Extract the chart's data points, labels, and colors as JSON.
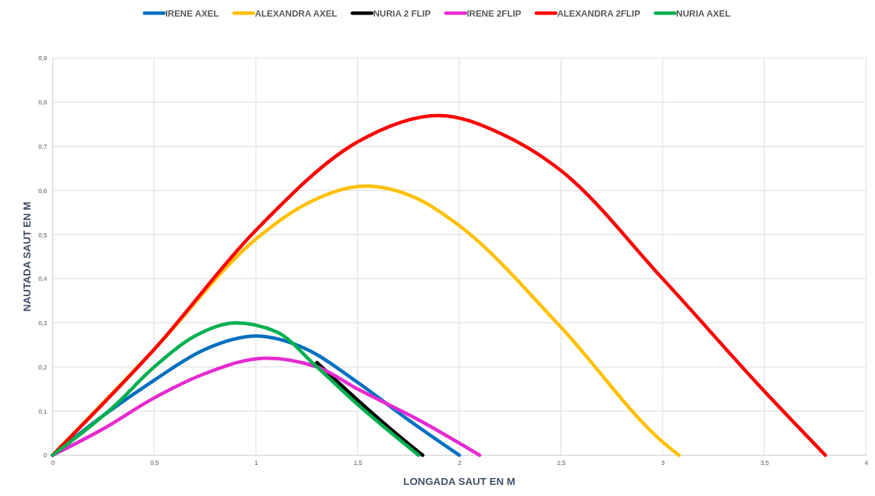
{
  "chart_data": {
    "type": "line",
    "xlabel": "LONGADA SAUT EN M",
    "ylabel": "NAUTADA  SAUT EN M",
    "xlim": [
      0,
      4
    ],
    "ylim": [
      0,
      0.9
    ],
    "xticks": [
      0,
      {
        "value": 0.5,
        "label": "0,5"
      },
      1,
      {
        "value": 1.5,
        "label": "1,5"
      },
      2,
      {
        "value": 2.5,
        "label": "2,5"
      },
      3,
      {
        "value": 3.5,
        "label": "3,5"
      },
      4
    ],
    "yticks": [
      0,
      {
        "value": 0.1,
        "label": "0,1"
      },
      {
        "value": 0.2,
        "label": "0,2"
      },
      {
        "value": 0.3,
        "label": "0,3"
      },
      {
        "value": 0.4,
        "label": "0,4"
      },
      {
        "value": 0.5,
        "label": "0,5"
      },
      {
        "value": 0.6,
        "label": "0,6"
      },
      {
        "value": 0.7,
        "label": "0,7"
      },
      {
        "value": 0.8,
        "label": "0,8"
      },
      {
        "value": 0.9,
        "label": "0,9"
      }
    ],
    "grid": true,
    "legend": "top",
    "marker": "none",
    "line_style": "solid",
    "series": [
      {
        "name": "IRENE AXEL",
        "color": "#0070c0",
        "x": [
          0,
          0.25,
          0.5,
          0.75,
          1.0,
          1.25,
          1.5,
          1.75,
          2.0
        ],
        "values": [
          0,
          0.09,
          0.17,
          0.24,
          0.27,
          0.24,
          0.165,
          0.08,
          0
        ]
      },
      {
        "name": "ALEXANDRA AXEL",
        "color": "#ffc000",
        "x": [
          0,
          0.5,
          1.0,
          1.25,
          1.54,
          1.8,
          2.0,
          2.5,
          3.0,
          3.08
        ],
        "values": [
          0,
          0.24,
          0.49,
          0.57,
          0.61,
          0.58,
          0.52,
          0.29,
          0.03,
          0
        ]
      },
      {
        "name": "NURIA 2 FLIP",
        "color": "#000000",
        "x": [
          1.3,
          1.5,
          1.7,
          1.82
        ],
        "values": [
          0.21,
          0.125,
          0.045,
          0
        ]
      },
      {
        "name": "IRENE 2FLIP",
        "color": "#e62bd0",
        "x": [
          0,
          0.25,
          0.5,
          0.75,
          1.05,
          1.3,
          1.5,
          1.8,
          2.1
        ],
        "values": [
          0,
          0.06,
          0.13,
          0.185,
          0.22,
          0.2,
          0.15,
          0.08,
          0
        ]
      },
      {
        "name": "ALEXANDRA 2FLIP",
        "color": "#ff0000",
        "x": [
          0,
          0.5,
          1.0,
          1.5,
          1.9,
          2.2,
          2.5,
          3.0,
          3.5,
          3.8
        ],
        "values": [
          0,
          0.24,
          0.51,
          0.71,
          0.77,
          0.73,
          0.645,
          0.4,
          0.145,
          0
        ]
      },
      {
        "name": "NURIA AXEL",
        "color": "#00b050",
        "x": [
          0,
          0.3,
          0.5,
          0.7,
          0.9,
          1.1,
          1.3,
          1.5,
          1.8
        ],
        "values": [
          0,
          0.11,
          0.2,
          0.27,
          0.3,
          0.28,
          0.2,
          0.115,
          0
        ]
      }
    ]
  }
}
